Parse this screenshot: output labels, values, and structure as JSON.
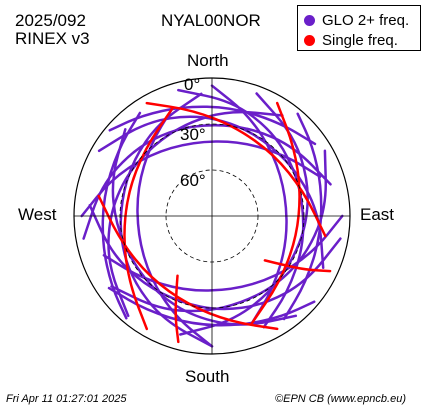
{
  "header": {
    "date": "2025/092",
    "format": "RINEX v3",
    "station": "NYAL00NOR"
  },
  "footer": {
    "timestamp": "Fri Apr 11 01:27:01 2025",
    "credit": "©EPN CB (www.epncb.eu)"
  },
  "chart_data": {
    "type": "polar-skyplot",
    "directions": {
      "north": "North",
      "south": "South",
      "east": "East",
      "west": "West"
    },
    "elevation_labels": [
      "0°",
      "30°",
      "60°"
    ],
    "elevation_rings_deg": [
      0,
      30,
      60
    ],
    "legend_position": "top-right",
    "series": [
      {
        "name": "GLO 2+ freq.",
        "color": "#6a1fc9"
      },
      {
        "name": "Single freq.",
        "color": "#ff0000"
      }
    ],
    "tracks": [
      {
        "series": 0,
        "points": [
          [
            345,
            5
          ],
          [
            10,
            14
          ],
          [
            35,
            22
          ],
          [
            60,
            28
          ],
          [
            85,
            30
          ],
          [
            110,
            27
          ],
          [
            135,
            20
          ],
          [
            155,
            10
          ]
        ]
      },
      {
        "series": 0,
        "points": [
          [
            20,
            5
          ],
          [
            45,
            15
          ],
          [
            70,
            23
          ],
          [
            95,
            28
          ],
          [
            120,
            30
          ],
          [
            145,
            27
          ],
          [
            170,
            20
          ],
          [
            195,
            10
          ]
        ]
      },
      {
        "series": 0,
        "points": [
          [
            60,
            5
          ],
          [
            85,
            15
          ],
          [
            110,
            23
          ],
          [
            135,
            28
          ],
          [
            160,
            30
          ],
          [
            185,
            27
          ],
          [
            210,
            20
          ],
          [
            235,
            10
          ]
        ]
      },
      {
        "series": 0,
        "points": [
          [
            100,
            5
          ],
          [
            125,
            15
          ],
          [
            150,
            23
          ],
          [
            175,
            28
          ],
          [
            200,
            30
          ],
          [
            225,
            27
          ],
          [
            250,
            20
          ],
          [
            275,
            10
          ]
        ]
      },
      {
        "series": 0,
        "points": [
          [
            140,
            5
          ],
          [
            165,
            15
          ],
          [
            190,
            23
          ],
          [
            215,
            28
          ],
          [
            240,
            30
          ],
          [
            265,
            27
          ],
          [
            290,
            20
          ],
          [
            315,
            10
          ]
        ]
      },
      {
        "series": 0,
        "points": [
          [
            180,
            5
          ],
          [
            205,
            15
          ],
          [
            230,
            23
          ],
          [
            255,
            28
          ],
          [
            280,
            30
          ],
          [
            305,
            27
          ],
          [
            330,
            20
          ],
          [
            355,
            10
          ]
        ]
      },
      {
        "series": 0,
        "points": [
          [
            220,
            5
          ],
          [
            245,
            15
          ],
          [
            270,
            23
          ],
          [
            295,
            28
          ],
          [
            320,
            30
          ],
          [
            345,
            27
          ],
          [
            10,
            20
          ],
          [
            35,
            10
          ]
        ]
      },
      {
        "series": 0,
        "points": [
          [
            260,
            5
          ],
          [
            285,
            15
          ],
          [
            310,
            23
          ],
          [
            335,
            28
          ],
          [
            0,
            30
          ],
          [
            25,
            27
          ],
          [
            50,
            20
          ],
          [
            75,
            10
          ]
        ]
      },
      {
        "series": 0,
        "points": [
          [
            300,
            5
          ],
          [
            325,
            15
          ],
          [
            350,
            23
          ],
          [
            15,
            28
          ],
          [
            40,
            30
          ],
          [
            65,
            27
          ],
          [
            90,
            20
          ],
          [
            115,
            10
          ]
        ]
      },
      {
        "series": 0,
        "points": [
          [
            0,
            5
          ],
          [
            20,
            20
          ],
          [
            45,
            33
          ],
          [
            75,
            40
          ],
          [
            110,
            38
          ],
          [
            140,
            28
          ],
          [
            160,
            15
          ]
        ]
      },
      {
        "series": 0,
        "points": [
          [
            90,
            5
          ],
          [
            110,
            20
          ],
          [
            135,
            33
          ],
          [
            165,
            40
          ],
          [
            200,
            38
          ],
          [
            230,
            28
          ],
          [
            250,
            15
          ]
        ]
      },
      {
        "series": 0,
        "points": [
          [
            180,
            5
          ],
          [
            200,
            20
          ],
          [
            225,
            33
          ],
          [
            255,
            40
          ],
          [
            290,
            38
          ],
          [
            320,
            28
          ],
          [
            340,
            15
          ]
        ]
      },
      {
        "series": 0,
        "points": [
          [
            270,
            5
          ],
          [
            290,
            20
          ],
          [
            315,
            33
          ],
          [
            345,
            40
          ],
          [
            20,
            38
          ],
          [
            50,
            28
          ],
          [
            70,
            15
          ]
        ]
      },
      {
        "series": 0,
        "points": [
          [
            40,
            3
          ],
          [
            55,
            10
          ],
          [
            75,
            16
          ],
          [
            100,
            18
          ],
          [
            125,
            15
          ],
          [
            145,
            8
          ]
        ]
      },
      {
        "series": 0,
        "points": [
          [
            130,
            3
          ],
          [
            145,
            10
          ],
          [
            165,
            16
          ],
          [
            190,
            18
          ],
          [
            215,
            15
          ],
          [
            235,
            8
          ]
        ]
      },
      {
        "series": 0,
        "points": [
          [
            220,
            3
          ],
          [
            235,
            10
          ],
          [
            255,
            16
          ],
          [
            280,
            18
          ],
          [
            305,
            15
          ],
          [
            325,
            8
          ]
        ]
      },
      {
        "series": 0,
        "points": [
          [
            310,
            3
          ],
          [
            325,
            10
          ],
          [
            345,
            16
          ],
          [
            10,
            18
          ],
          [
            35,
            15
          ],
          [
            55,
            8
          ]
        ]
      },
      {
        "series": 1,
        "points": [
          [
            30,
            5
          ],
          [
            50,
            20
          ],
          [
            75,
            30
          ],
          [
            105,
            33
          ],
          [
            135,
            28
          ],
          [
            160,
            15
          ]
        ]
      },
      {
        "series": 1,
        "points": [
          [
            150,
            5
          ],
          [
            170,
            20
          ],
          [
            195,
            30
          ],
          [
            225,
            33
          ],
          [
            255,
            28
          ],
          [
            280,
            15
          ]
        ]
      },
      {
        "series": 1,
        "points": [
          [
            210,
            5
          ],
          [
            230,
            20
          ],
          [
            255,
            30
          ],
          [
            285,
            33
          ],
          [
            315,
            28
          ],
          [
            340,
            15
          ]
        ]
      },
      {
        "series": 1,
        "points": [
          [
            330,
            5
          ],
          [
            350,
            20
          ],
          [
            15,
            30
          ],
          [
            45,
            33
          ],
          [
            75,
            28
          ],
          [
            100,
            15
          ]
        ]
      },
      {
        "series": 1,
        "points": [
          [
            115,
            5
          ],
          [
            120,
            20
          ],
          [
            125,
            35
          ],
          [
            130,
            45
          ]
        ]
      },
      {
        "series": 1,
        "points": [
          [
            195,
            5
          ],
          [
            200,
            20
          ],
          [
            205,
            35
          ],
          [
            210,
            45
          ]
        ]
      }
    ]
  }
}
